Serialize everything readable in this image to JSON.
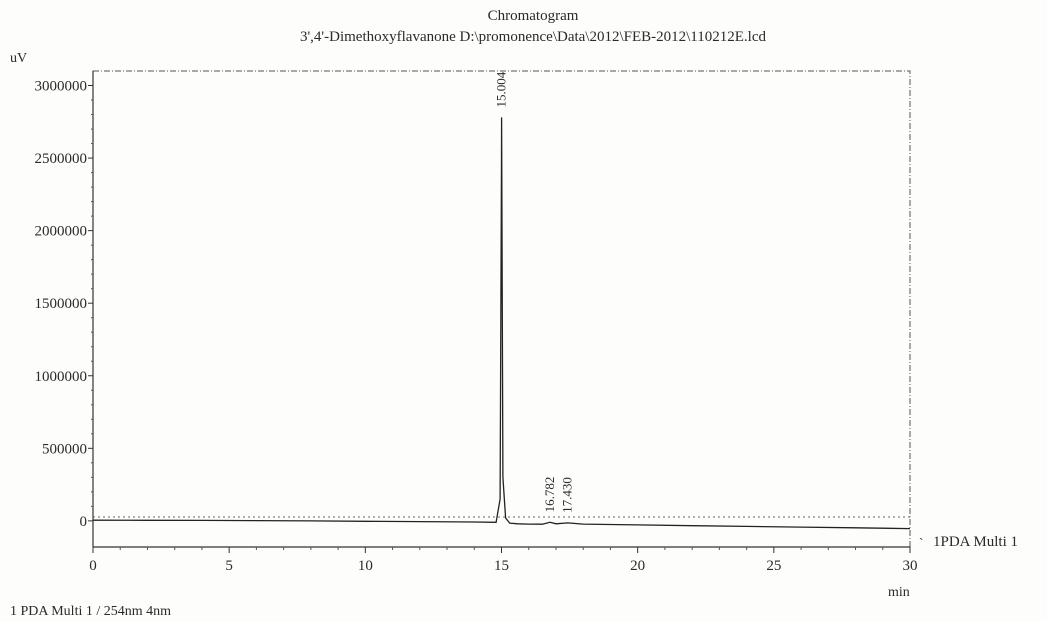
{
  "chart_data": {
    "type": "line",
    "title": "Chromatogram",
    "subtitle": "3',4'-Dimethoxyflavanone D:\\promonence\\Data\\2012\\FEB-2012\\110212E.lcd",
    "ylabel": "uV",
    "xlabel": "min",
    "xlim": [
      0,
      30
    ],
    "ylim": [
      -180000,
      3100000
    ],
    "x_ticks": [
      0,
      5,
      10,
      15,
      20,
      25,
      30
    ],
    "y_ticks": [
      0,
      500000,
      1000000,
      1500000,
      2000000,
      2500000,
      3000000
    ],
    "x_tick_labels": [
      "0",
      "5",
      "10",
      "15",
      "20",
      "25",
      "30"
    ],
    "y_tick_labels": [
      "0",
      "500000",
      "1000000",
      "1500000",
      "2000000",
      "2500000",
      "3000000"
    ],
    "series": [
      {
        "name": "1PDA Multi 1",
        "x": [
          0,
          2,
          4,
          6,
          8,
          10,
          12,
          14,
          14.8,
          14.95,
          15.0,
          15.004,
          15.05,
          15.15,
          15.3,
          15.6,
          16.0,
          16.5,
          16.782,
          17.0,
          17.43,
          18,
          20,
          22,
          24,
          26,
          28,
          30
        ],
        "values": [
          5000,
          4000,
          3000,
          2000,
          0,
          -3000,
          -5000,
          -8000,
          -10000,
          150000,
          2500000,
          2780000,
          300000,
          20000,
          -15000,
          -20000,
          -22000,
          -23000,
          -10000,
          -20000,
          -14000,
          -22000,
          -28000,
          -33000,
          -38000,
          -43000,
          -48000,
          -53000
        ]
      }
    ],
    "peaks": [
      {
        "retention_time": "15.004",
        "x": 15.004,
        "y": 2780000
      },
      {
        "retention_time": "16.782",
        "x": 16.782,
        "y": -10000
      },
      {
        "retention_time": "17.430",
        "x": 17.43,
        "y": -14000
      }
    ],
    "legend": {
      "label": "1PDA Multi 1",
      "position": "right"
    },
    "footer": "1   PDA Multi 1 / 254nm 4nm",
    "grid": false
  }
}
